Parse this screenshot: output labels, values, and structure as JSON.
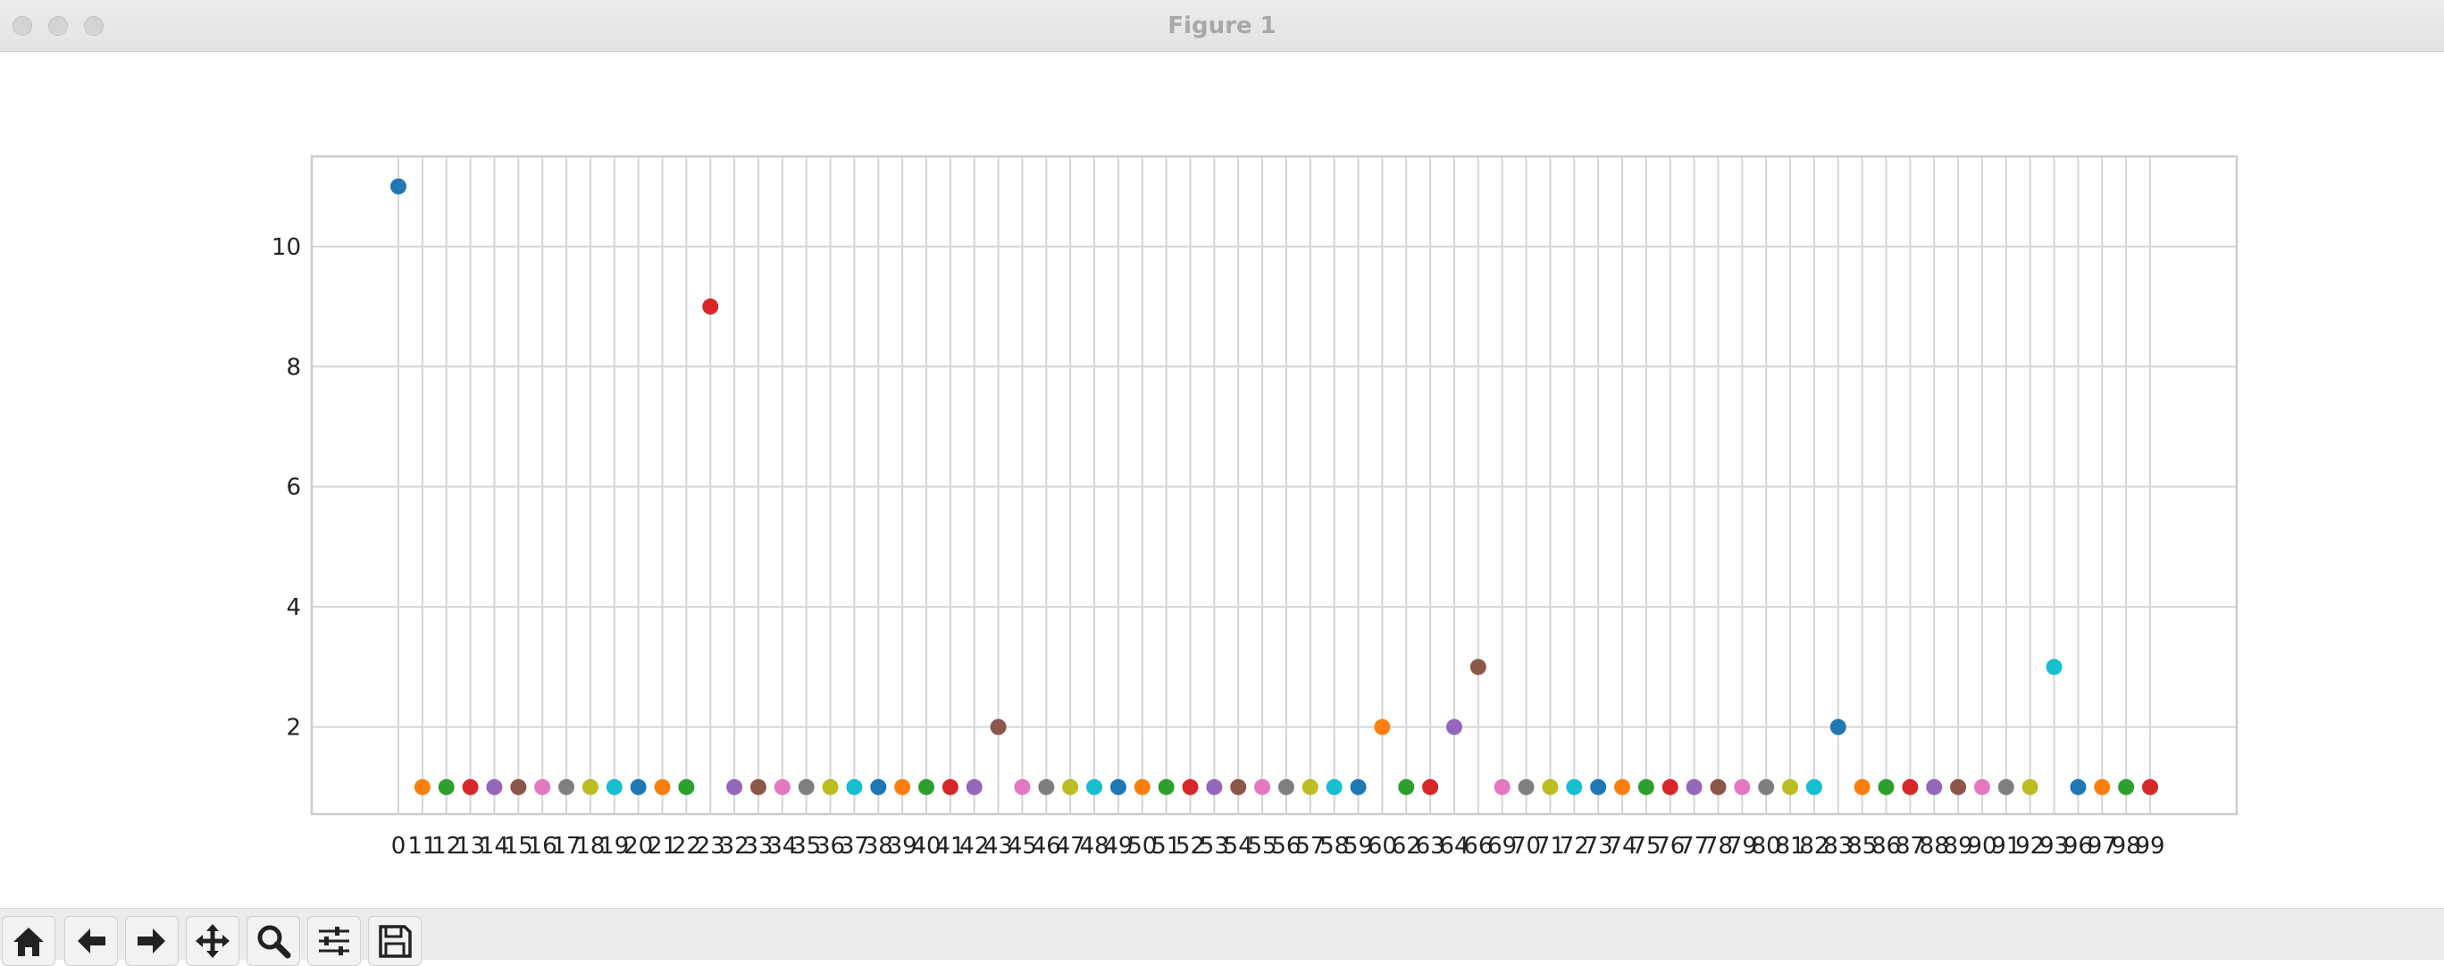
{
  "window": {
    "title": "Figure 1"
  },
  "toolbar": {
    "buttons": [
      {
        "name": "home-button",
        "icon": "home-icon"
      },
      {
        "name": "back-button",
        "icon": "arrow-left-icon"
      },
      {
        "name": "forward-button",
        "icon": "arrow-right-icon"
      },
      {
        "name": "pan-button",
        "icon": "move-icon"
      },
      {
        "name": "zoom-button",
        "icon": "magnifier-icon"
      },
      {
        "name": "configure-subplots-button",
        "icon": "sliders-icon"
      },
      {
        "name": "save-button",
        "icon": "floppy-disk-icon"
      }
    ]
  },
  "chart_data": {
    "type": "scatter",
    "title": "",
    "xlabel": "",
    "ylabel": "",
    "grid": true,
    "legend": "none",
    "yticks": [
      2,
      4,
      6,
      8,
      10
    ],
    "ylim": [
      0.55,
      11.5
    ],
    "categories": [
      "0",
      "11",
      "12",
      "13",
      "14",
      "15",
      "16",
      "17",
      "18",
      "19",
      "20",
      "21",
      "22",
      "23",
      "32",
      "33",
      "34",
      "35",
      "36",
      "37",
      "38",
      "39",
      "40",
      "41",
      "42",
      "43",
      "45",
      "46",
      "47",
      "48",
      "49",
      "50",
      "51",
      "52",
      "53",
      "54",
      "55",
      "56",
      "57",
      "58",
      "59",
      "60",
      "62",
      "63",
      "64",
      "66",
      "69",
      "70",
      "71",
      "72",
      "73",
      "74",
      "75",
      "76",
      "77",
      "78",
      "79",
      "80",
      "81",
      "82",
      "83",
      "85",
      "86",
      "87",
      "88",
      "89",
      "90",
      "91",
      "92",
      "93",
      "96",
      "97",
      "98",
      "99"
    ],
    "values": [
      11,
      1,
      1,
      1,
      1,
      1,
      1,
      1,
      1,
      1,
      1,
      1,
      1,
      9,
      1,
      1,
      1,
      1,
      1,
      1,
      1,
      1,
      1,
      1,
      1,
      2,
      1,
      1,
      1,
      1,
      1,
      1,
      1,
      1,
      1,
      1,
      1,
      1,
      1,
      1,
      1,
      2,
      1,
      1,
      2,
      3,
      1,
      1,
      1,
      1,
      1,
      1,
      1,
      1,
      1,
      1,
      1,
      1,
      1,
      1,
      2,
      1,
      1,
      1,
      1,
      1,
      1,
      1,
      1,
      3,
      1,
      1,
      1,
      1
    ],
    "colors": [
      "#1f77b4",
      "#ff7f0e",
      "#2ca02c",
      "#d62728",
      "#9467bd",
      "#8c564b",
      "#e377c2",
      "#7f7f7f",
      "#bcbd22",
      "#17becf"
    ]
  }
}
